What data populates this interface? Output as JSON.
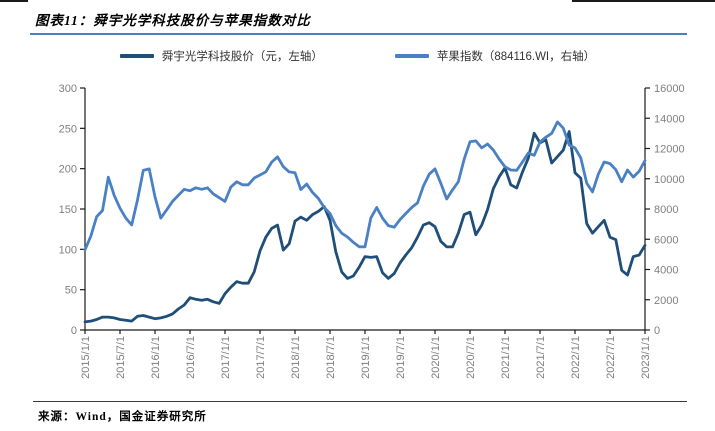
{
  "figure": {
    "title": "图表11：舜宇光学科技股价与苹果指数对比",
    "source": "来源：Wind，国金证券研究所"
  },
  "legend": [
    {
      "label": "舜宇光学科技股价（元，左轴）",
      "color": "#1f4e79"
    },
    {
      "label": "苹果指数（884116.WI，右轴）",
      "color": "#4a80c4"
    }
  ],
  "colors": {
    "dark_series": "#1f4e79",
    "light_series": "#4a80c4",
    "axis": "#1a1a1a",
    "tick_label": "#808080",
    "title_rule": "#4a80c4"
  },
  "chart_data": {
    "type": "line",
    "title": "舜宇光学科技股价与苹果指数对比",
    "x_start": "2015/1",
    "x_frequency": "monthly",
    "x_tick_labels": [
      "2015/1/1",
      "2015/7/1",
      "2016/1/1",
      "2016/7/1",
      "2017/1/1",
      "2017/7/1",
      "2018/1/1",
      "2018/7/1",
      "2019/1/1",
      "2019/7/1",
      "2020/1/1",
      "2020/7/1",
      "2021/1/1",
      "2021/7/1",
      "2022/1/1",
      "2022/7/1",
      "2023/1/1"
    ],
    "left_axis": {
      "label": "舜宇光学科技股价（元）",
      "min": 0,
      "max": 300,
      "ticks": [
        0,
        50,
        100,
        150,
        200,
        250,
        300
      ]
    },
    "right_axis": {
      "label": "苹果指数（884116.WI）",
      "min": 0,
      "max": 16000,
      "ticks": [
        0,
        2000,
        4000,
        6000,
        8000,
        10000,
        12000,
        14000,
        16000
      ]
    },
    "grid": false,
    "legend_position": "top",
    "series": [
      {
        "name": "舜宇光学科技股价（元，左轴）",
        "axis": "left",
        "color": "#1f4e79",
        "values": [
          10,
          11,
          13,
          16,
          16,
          15,
          13,
          12,
          11,
          17,
          18,
          16,
          14,
          15,
          17,
          20,
          26,
          31,
          40,
          38,
          37,
          38,
          35,
          33,
          45,
          53,
          60,
          58,
          58,
          72,
          98,
          115,
          126,
          130,
          99,
          107,
          135,
          140,
          136,
          143,
          147,
          153,
          136,
          97,
          72,
          64,
          67,
          78,
          91,
          90,
          91,
          71,
          64,
          70,
          83,
          93,
          102,
          115,
          130,
          133,
          128,
          110,
          103,
          103,
          120,
          143,
          146,
          118,
          130,
          149,
          175,
          190,
          201,
          180,
          176,
          196,
          213,
          244,
          232,
          236,
          207,
          215,
          223,
          246,
          195,
          188,
          132,
          120,
          128,
          136,
          115,
          112,
          74,
          68,
          91,
          93,
          105
        ]
      },
      {
        "name": "苹果指数（884116.WI，右轴）",
        "axis": "right",
        "color": "#4a80c4",
        "values": [
          5300,
          6200,
          7500,
          7900,
          10100,
          8900,
          8050,
          7400,
          6950,
          8600,
          10550,
          10650,
          8800,
          7400,
          7950,
          8500,
          8900,
          9300,
          9200,
          9400,
          9300,
          9400,
          9000,
          8750,
          8500,
          9450,
          9800,
          9600,
          9600,
          10050,
          10250,
          10450,
          11100,
          11450,
          10800,
          10450,
          10400,
          9280,
          9650,
          9100,
          8700,
          8100,
          7700,
          6900,
          6400,
          6150,
          5800,
          5500,
          5500,
          7400,
          8100,
          7400,
          6900,
          6800,
          7300,
          7700,
          8100,
          8400,
          9500,
          10300,
          10650,
          9700,
          8660,
          9260,
          9800,
          11300,
          12440,
          12500,
          12040,
          12300,
          11900,
          11300,
          10790,
          10580,
          10560,
          11110,
          11700,
          11550,
          12430,
          12750,
          13000,
          13760,
          13340,
          12230,
          12030,
          11370,
          9710,
          9130,
          10300,
          11110,
          11000,
          10600,
          9800,
          10580,
          10110,
          10500,
          11200
        ]
      }
    ]
  }
}
